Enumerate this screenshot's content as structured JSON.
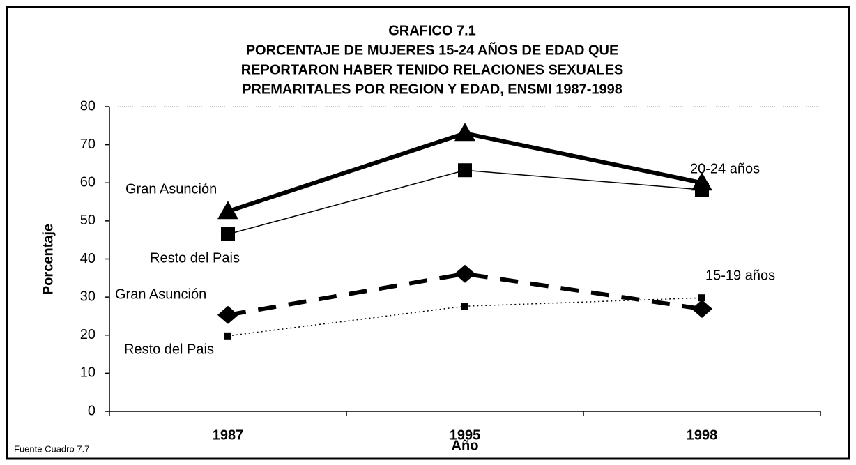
{
  "chart_data": {
    "type": "line",
    "title": [
      "GRAFICO 7.1",
      "PORCENTAJE DE MUJERES 15-24 AÑOS DE EDAD QUE",
      "REPORTARON HABER TENIDO RELACIONES SEXUALES",
      "PREMARITALES POR REGION Y EDAD, ENSMI 1987-1998"
    ],
    "x_label": "Año",
    "y_label": "Porcentaje",
    "source": "Fuente Cuadro 7.7",
    "categories": [
      "1987",
      "1995",
      "1998"
    ],
    "ylim": [
      0,
      80
    ],
    "yticks": [
      0,
      10,
      20,
      30,
      40,
      50,
      60,
      70,
      80
    ],
    "grid": false,
    "annotations": [
      "20-24 años",
      "15-19 años"
    ],
    "series": [
      {
        "name": "Gran Asunción",
        "color": "#000000",
        "line": "thick",
        "marker": "triangle",
        "values": [
          52.5,
          73,
          60
        ]
      },
      {
        "name": "Resto del Pais",
        "color": "#000000",
        "line": "thin",
        "marker": "square",
        "values": [
          46.5,
          63.3,
          58.2
        ]
      },
      {
        "name": "Gran Asunción",
        "color": "#000000",
        "line": "dashed",
        "marker": "diamond",
        "values": [
          25.3,
          36.1,
          26.9
        ]
      },
      {
        "name": "Resto del Pais",
        "color": "#000000",
        "line": "dotted",
        "marker": "small-square",
        "values": [
          19.8,
          27.6,
          29.8
        ]
      }
    ]
  }
}
